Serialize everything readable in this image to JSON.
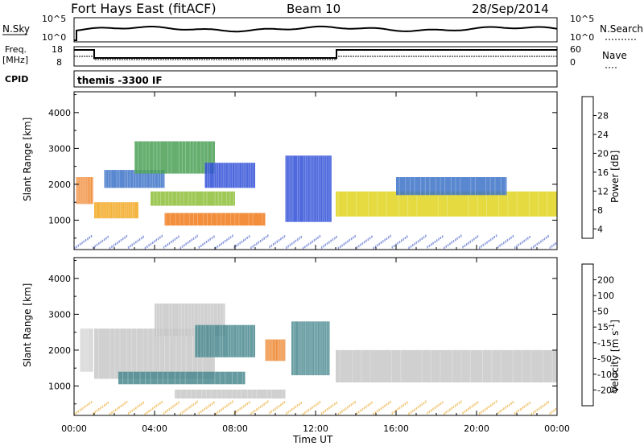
{
  "header": {
    "site": "Fort Hays East (fitACF)",
    "beam": "Beam 10",
    "date": "28/Sep/2014"
  },
  "left_labels": {
    "nsky": "N.Sky",
    "freq_line1": "Freq.",
    "freq_line2": "[MHz]",
    "cpid": "CPID"
  },
  "right_labels": {
    "nsearch": "N.Search",
    "nave": "Nave"
  },
  "cpid_value": "themis -3300 IF",
  "noise_ticks_left": [
    "10^5",
    "10^0"
  ],
  "noise_ticks_right": [
    "10^5",
    "10^0"
  ],
  "freq_ticks": [
    "18",
    "8"
  ],
  "nave_ticks": [
    "60",
    "0"
  ],
  "chart_data": [
    {
      "type": "heatmap",
      "panel": "power",
      "ylabel": "Slant Range [km]",
      "yticks": [
        "1000",
        "2000",
        "3000",
        "4000"
      ],
      "ylim": [
        180,
        4580
      ],
      "xlim": [
        0,
        24
      ],
      "colorbar": {
        "label": "Power [dB]",
        "ticks": [
          "4",
          "8",
          "12",
          "16",
          "20",
          "24",
          "28"
        ],
        "colors": [
          "#1f24e6",
          "#2f4fd8",
          "#3d73c8",
          "#3f8f88",
          "#4aa055",
          "#8ec03a",
          "#e0d520",
          "#f2a61c",
          "#f07a1a",
          "#e84a17",
          "#e01616"
        ]
      },
      "bands": [
        {
          "x": [
            0.1,
            0.95
          ],
          "range": [
            1450,
            2200
          ],
          "value": 26
        },
        {
          "x": [
            1.0,
            3.2
          ],
          "range": [
            1050,
            1500
          ],
          "value": 22
        },
        {
          "x": [
            1.5,
            4.5
          ],
          "range": [
            1900,
            2400
          ],
          "value": 10
        },
        {
          "x": [
            3.0,
            7.0
          ],
          "range": [
            2300,
            3200
          ],
          "value": 14
        },
        {
          "x": [
            3.8,
            8.0
          ],
          "range": [
            1400,
            1800
          ],
          "value": 18
        },
        {
          "x": [
            4.5,
            9.5
          ],
          "range": [
            850,
            1200
          ],
          "value": 24
        },
        {
          "x": [
            6.5,
            9.0
          ],
          "range": [
            1900,
            2600
          ],
          "value": 6
        },
        {
          "x": [
            10.5,
            12.8
          ],
          "range": [
            950,
            2800
          ],
          "value": 6
        },
        {
          "x": [
            13.0,
            24.0
          ],
          "range": [
            1100,
            1800
          ],
          "value": 20
        },
        {
          "x": [
            16.0,
            21.5
          ],
          "range": [
            1700,
            2200
          ],
          "value": 8
        }
      ]
    },
    {
      "type": "heatmap",
      "panel": "velocity",
      "ylabel": "Slant Range [km]",
      "yticks": [
        "1000",
        "2000",
        "3000",
        "4000"
      ],
      "ylim": [
        180,
        4580
      ],
      "xlim": [
        0,
        24
      ],
      "xlabel": "Time UT",
      "xticks": [
        "00:00",
        "04:00",
        "08:00",
        "12:00",
        "16:00",
        "20:00",
        "00:00"
      ],
      "colorbar": {
        "label": "Velocity [m s",
        "unit_exp": "-1",
        "unit_close": "]",
        "ticks": [
          "200",
          "100",
          "50",
          "15",
          "-15",
          "-50",
          "-100",
          "-200"
        ],
        "colors": [
          "#2b3fd9",
          "#3c6bd0",
          "#4a8a8f",
          "#4fb046",
          "#7cd13a",
          "#c8c8c8",
          "#e8a11a",
          "#ec7a18",
          "#e84e17",
          "#e01616"
        ]
      },
      "bands": [
        {
          "x": [
            0.3,
            0.95
          ],
          "range": [
            1400,
            2600
          ],
          "value": 0
        },
        {
          "x": [
            1.0,
            7.0
          ],
          "range": [
            1200,
            2600
          ],
          "value": 0
        },
        {
          "x": [
            4.0,
            7.5
          ],
          "range": [
            2400,
            3300
          ],
          "value": 0
        },
        {
          "x": [
            6.0,
            9.0
          ],
          "range": [
            1800,
            2700
          ],
          "value": 40
        },
        {
          "x": [
            2.2,
            8.5
          ],
          "range": [
            1050,
            1400
          ],
          "value": 45
        },
        {
          "x": [
            5.0,
            10.5
          ],
          "range": [
            650,
            900
          ],
          "value": 0
        },
        {
          "x": [
            10.8,
            12.7
          ],
          "range": [
            1300,
            2800
          ],
          "value": 40
        },
        {
          "x": [
            13.0,
            24.0
          ],
          "range": [
            1100,
            2000
          ],
          "value": 0
        },
        {
          "x": [
            9.5,
            10.5
          ],
          "range": [
            1700,
            2300
          ],
          "value": -60
        }
      ]
    }
  ]
}
